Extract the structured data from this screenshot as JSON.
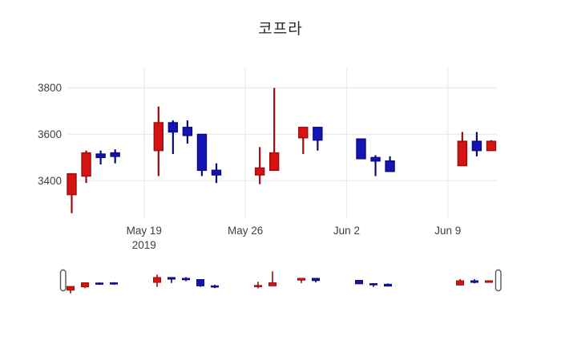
{
  "chart_data": {
    "type": "candlestick",
    "title": "코프라",
    "xlabel": "",
    "ylabel": "",
    "grid": true,
    "legend": false,
    "ylim": [
      3235,
      3885
    ],
    "x_day_span": [
      0,
      29
    ],
    "colors": {
      "increasing_fill": "#d61313",
      "increasing_line": "#9e0c0c",
      "decreasing_fill": "#1414b4",
      "decreasing_line": "#0b0b7e",
      "grid": "#ebebeb",
      "tick_text": "#3f3f3f",
      "title_text": "#2a2a2a",
      "background": "#ffffff",
      "slider_handle_stroke": "#555555",
      "slider_handle_fill": "#ffffff"
    },
    "y_ticks": [
      {
        "value": 3400,
        "label": "3400"
      },
      {
        "value": 3600,
        "label": "3600"
      },
      {
        "value": 3800,
        "label": "3800"
      }
    ],
    "x_ticks": [
      {
        "day": 5,
        "label": "May 19",
        "sublabel": "2019"
      },
      {
        "day": 12,
        "label": "May 26",
        "sublabel": ""
      },
      {
        "day": 19,
        "label": "Jun 2",
        "sublabel": ""
      },
      {
        "day": 26,
        "label": "Jun 9",
        "sublabel": ""
      }
    ],
    "rangeslider": {
      "enabled": true
    },
    "candles": [
      {
        "date": "May 14",
        "day": 0,
        "open": 3340,
        "high": 3430,
        "low": 3260,
        "close": 3430
      },
      {
        "date": "May 15",
        "day": 1,
        "open": 3420,
        "high": 3530,
        "low": 3390,
        "close": 3520
      },
      {
        "date": "May 16",
        "day": 2,
        "open": 3515,
        "high": 3530,
        "low": 3470,
        "close": 3500
      },
      {
        "date": "May 17",
        "day": 3,
        "open": 3520,
        "high": 3535,
        "low": 3475,
        "close": 3505
      },
      {
        "date": "May 20",
        "day": 6,
        "open": 3530,
        "high": 3720,
        "low": 3420,
        "close": 3650
      },
      {
        "date": "May 21",
        "day": 7,
        "open": 3650,
        "high": 3660,
        "low": 3515,
        "close": 3610
      },
      {
        "date": "May 22",
        "day": 8,
        "open": 3630,
        "high": 3660,
        "low": 3560,
        "close": 3595
      },
      {
        "date": "May 23",
        "day": 9,
        "open": 3600,
        "high": 3600,
        "low": 3420,
        "close": 3445
      },
      {
        "date": "May 24",
        "day": 10,
        "open": 3445,
        "high": 3475,
        "low": 3390,
        "close": 3425
      },
      {
        "date": "May 27",
        "day": 13,
        "open": 3425,
        "high": 3545,
        "low": 3385,
        "close": 3455
      },
      {
        "date": "May 28",
        "day": 14,
        "open": 3445,
        "high": 3800,
        "low": 3445,
        "close": 3520
      },
      {
        "date": "May 30",
        "day": 16,
        "open": 3585,
        "high": 3630,
        "low": 3515,
        "close": 3630
      },
      {
        "date": "May 31",
        "day": 17,
        "open": 3630,
        "high": 3630,
        "low": 3530,
        "close": 3575
      },
      {
        "date": "Jun 3",
        "day": 20,
        "open": 3580,
        "high": 3580,
        "low": 3495,
        "close": 3495
      },
      {
        "date": "Jun 4",
        "day": 21,
        "open": 3500,
        "high": 3510,
        "low": 3420,
        "close": 3485
      },
      {
        "date": "Jun 5",
        "day": 22,
        "open": 3485,
        "high": 3505,
        "low": 3440,
        "close": 3440
      },
      {
        "date": "Jun 10",
        "day": 27,
        "open": 3465,
        "high": 3610,
        "low": 3465,
        "close": 3570
      },
      {
        "date": "Jun 11",
        "day": 28,
        "open": 3570,
        "high": 3610,
        "low": 3505,
        "close": 3530
      },
      {
        "date": "Jun 12",
        "day": 29,
        "open": 3530,
        "high": 3575,
        "low": 3530,
        "close": 3570
      }
    ]
  }
}
